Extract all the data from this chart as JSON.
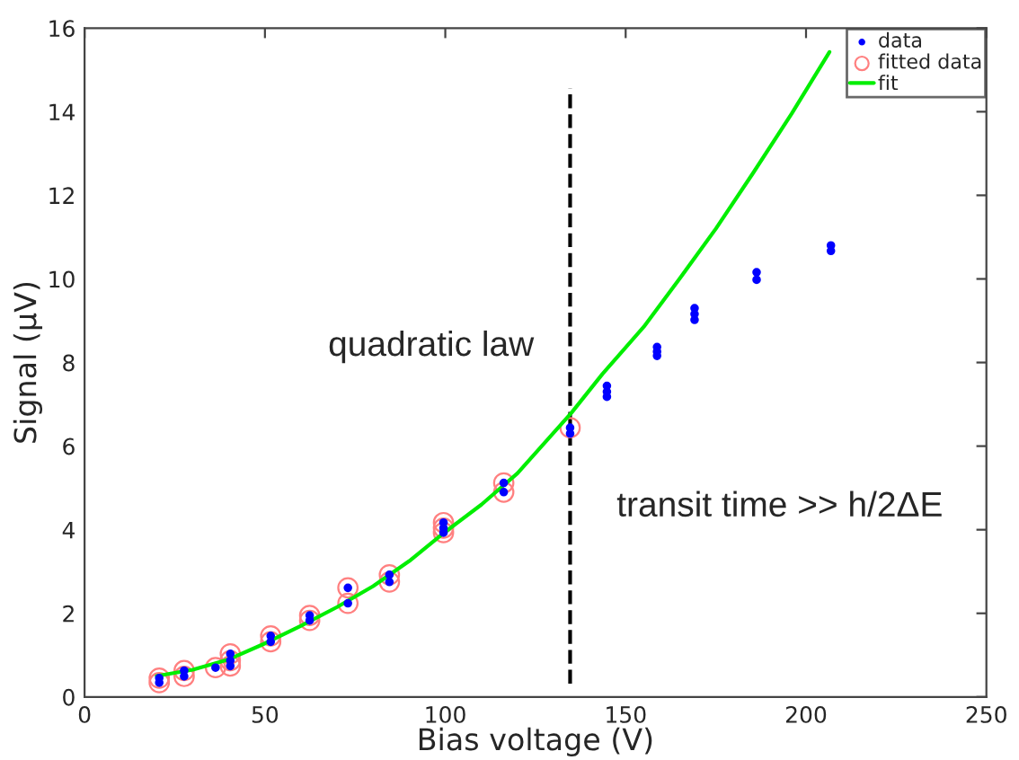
{
  "chart_data": {
    "type": "scatter",
    "xlabel": "Bias voltage (V)",
    "ylabel": "Signal (µV)",
    "xlim": [
      0,
      250
    ],
    "xticks": [
      0,
      50,
      100,
      150,
      200,
      250
    ],
    "ylim": [
      0,
      16
    ],
    "yticks": [
      0,
      2,
      4,
      6,
      8,
      10,
      12,
      14,
      16
    ],
    "grid": false,
    "legend": "top right",
    "series": [
      {
        "name": "data",
        "marker": "circle",
        "color": "#0000ff",
        "x": [
          20.7,
          20.7,
          27.6,
          27.6,
          36.3,
          40.4,
          40.4,
          40.4,
          51.6,
          51.6,
          62.4,
          62.4,
          73.0,
          73.0,
          84.5,
          84.5,
          99.5,
          99.5,
          99.5,
          116.2,
          116.2,
          134.6,
          134.6,
          144.8,
          144.8,
          144.8,
          158.7,
          158.7,
          158.7,
          169.1,
          169.1,
          169.1,
          186.3,
          186.3,
          206.9,
          206.9
        ],
        "values": [
          0.34,
          0.45,
          0.63,
          0.49,
          0.7,
          1.03,
          0.87,
          0.74,
          1.46,
          1.32,
          1.95,
          1.83,
          2.61,
          2.24,
          2.92,
          2.75,
          4.17,
          4.04,
          3.93,
          5.12,
          4.9,
          6.44,
          6.3,
          7.44,
          7.3,
          7.18,
          8.37,
          8.26,
          8.16,
          9.3,
          9.16,
          9.02,
          10.16,
          9.98,
          10.8,
          10.67
        ]
      },
      {
        "name": "fitted data",
        "marker": "circle",
        "color": "#ff8080",
        "x": [
          20.7,
          20.7,
          27.6,
          27.6,
          36.3,
          40.4,
          40.4,
          40.4,
          51.6,
          51.6,
          62.4,
          62.4,
          73.0,
          73.0,
          84.5,
          84.5,
          99.5,
          99.5,
          99.5,
          116.2,
          116.2,
          134.6
        ],
        "values": [
          0.34,
          0.45,
          0.63,
          0.49,
          0.7,
          1.03,
          0.87,
          0.74,
          1.46,
          1.32,
          1.95,
          1.83,
          2.61,
          2.24,
          2.92,
          2.75,
          4.17,
          4.04,
          3.93,
          5.12,
          4.9,
          6.44
        ]
      },
      {
        "name": "fit",
        "type": "line",
        "marker": "none",
        "line_style": "solid",
        "color": "#00ee00",
        "x": [
          20,
          30,
          40,
          50,
          60,
          70,
          80,
          90,
          100,
          110,
          120,
          135,
          143.6,
          155,
          164.9,
          175,
          185.3,
          196,
          206.5
        ],
        "values": [
          0.5,
          0.65,
          0.9,
          1.28,
          1.7,
          2.15,
          2.65,
          3.25,
          3.95,
          4.6,
          5.35,
          6.8,
          7.73,
          8.85,
          10.0,
          11.2,
          12.53,
          13.95,
          15.43
        ]
      }
    ],
    "ref_lines": [
      {
        "axis": "x",
        "value": 134.6,
        "color": "#000000",
        "line_style": "dashed"
      }
    ],
    "annotations": [
      "quadratic law",
      "transit time >> h/2ΔE"
    ]
  }
}
